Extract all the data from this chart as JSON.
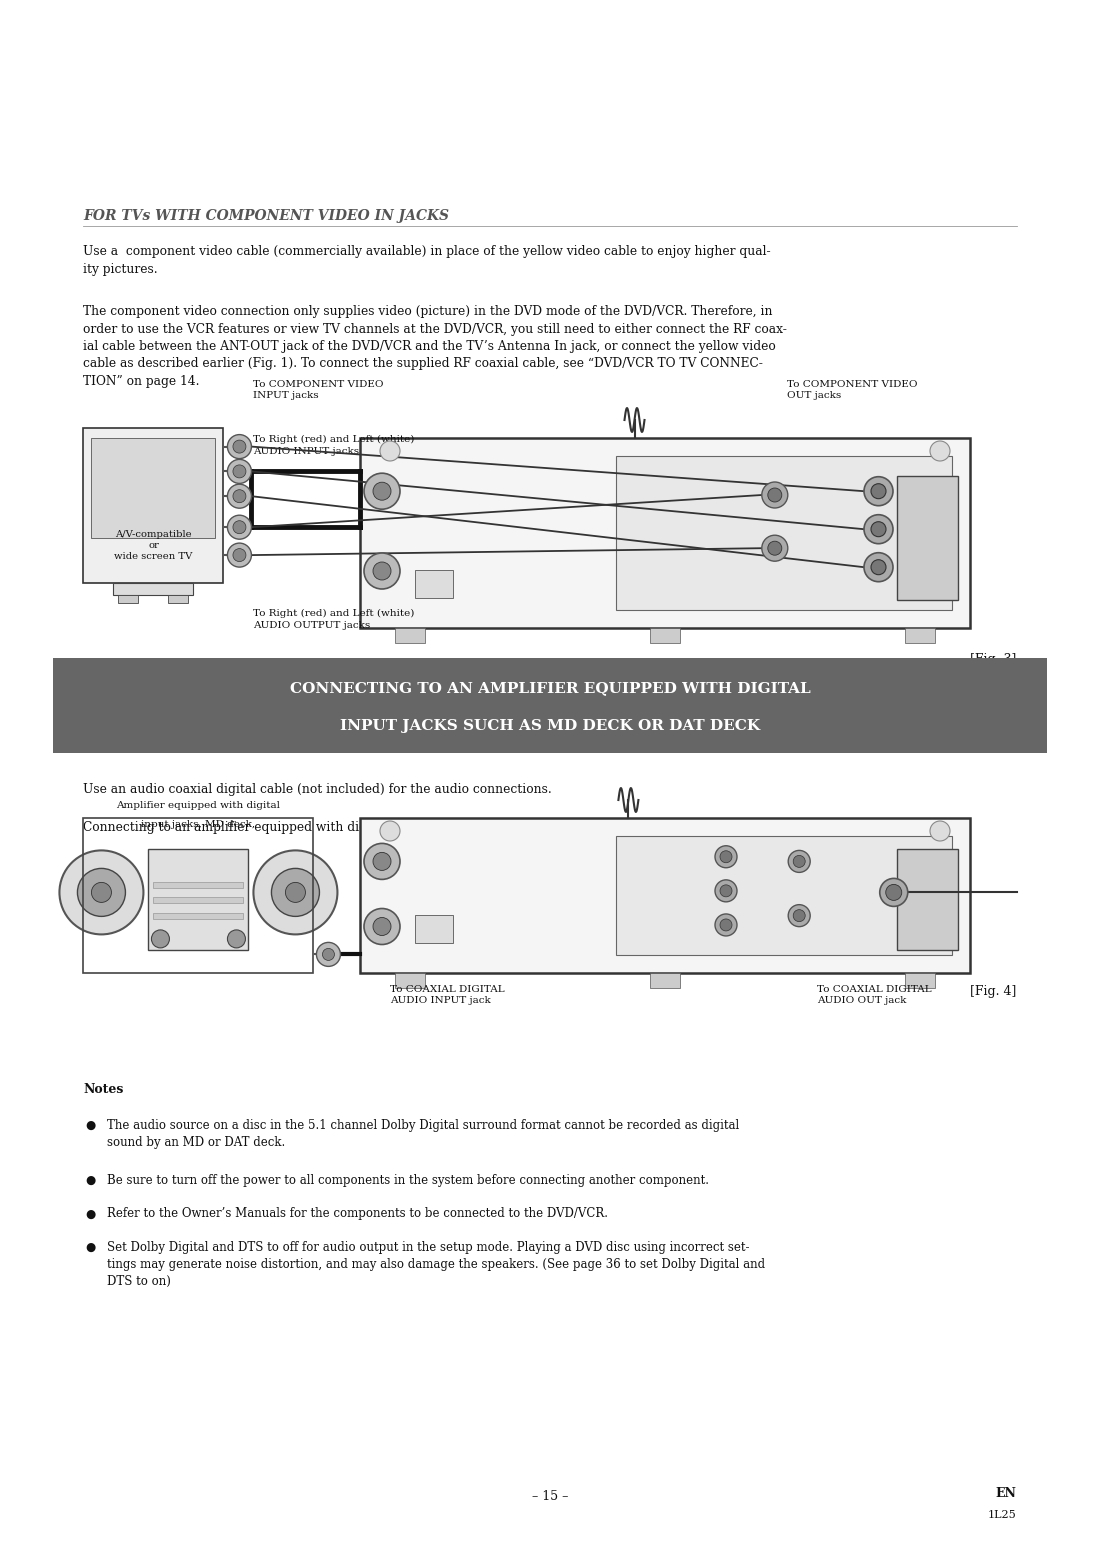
{
  "bg_color": "#ffffff",
  "lm": 0.068,
  "rm": 0.932,
  "section1_title": "FOR TVs WITH COMPONENT VIDEO IN JACKS",
  "section1_para1": "Use a  component video cable (commercially available) in place of the yellow video cable to enjoy higher qual-\nity pictures.",
  "section1_para2": "The component video connection only supplies video (picture) in the DVD mode of the DVD/VCR. Therefore, in\norder to use the VCR features or view TV channels at the DVD/VCR, you still need to either connect the RF coax-\nial cable between the ANT-OUT jack of the DVD/VCR and the TV’s Antenna In jack, or connect the yellow video\ncable as described earlier (Fig. 1). To connect the supplied RF coaxial cable, see “DVD/VCR TO TV CONNEC-\nTION” on page 14.",
  "section2_banner_text1": "CONNECTING TO AN AMPLIFIER EQUIPPED WITH DIGITAL",
  "section2_banner_text2": "INPUT JACKS SUCH AS MD DECK OR DAT DECK",
  "section2_banner_bg": "#666666",
  "section2_banner_text_color": "#ffffff",
  "section2_para1": "Use an audio coaxial digital cable (not included) for the audio connections.",
  "section2_para2": "Connecting to an amplifier equipped with digital input jacks such as MD Deck or DAT Deck.",
  "fig3_label": "[Fig. 3]",
  "fig4_label": "[Fig. 4]",
  "notes_title": "Notes",
  "note1": "The audio source on a disc in the 5.1 channel Dolby Digital surround format cannot be recorded as digital\nsound by an MD or DAT deck.",
  "note2": "Be sure to turn off the power to all components in the system before connecting another component.",
  "note3": "Refer to the Owner’s Manuals for the components to be connected to the DVD/VCR.",
  "note4": "Set Dolby Digital and DTS to off for audio output in the setup mode. Playing a DVD disc using incorrect set-\ntings may generate noise distortion, and may also damage the speakers. (See page 36 to set Dolby Digital and\nDTS to on)",
  "footer_page": "– 15 –",
  "footer_en": "EN",
  "footer_code": "1L25"
}
